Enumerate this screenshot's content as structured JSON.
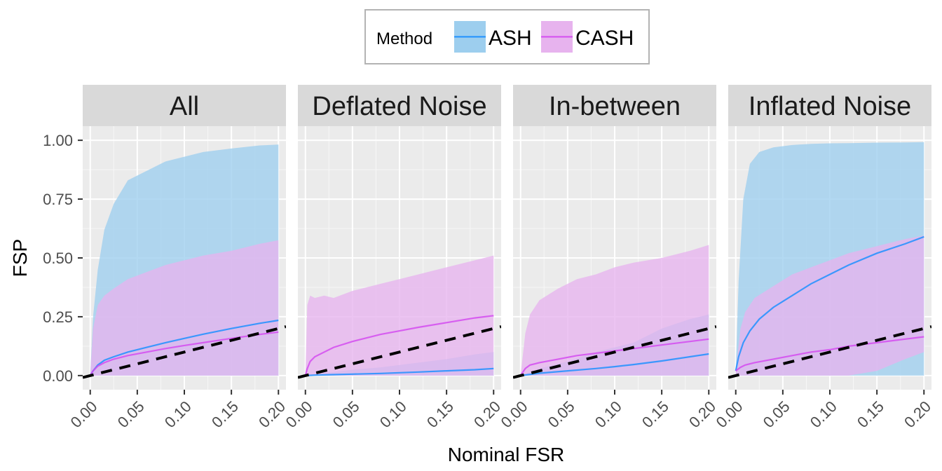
{
  "chart_data": {
    "type": "area",
    "xlabel": "Nominal FSR",
    "ylabel": "FSP",
    "xlim": [
      -0.008,
      0.208
    ],
    "ylim": [
      -0.06,
      1.06
    ],
    "x_ticks": [
      "0.00",
      "0.05",
      "0.10",
      "0.15",
      "0.20"
    ],
    "y_ticks": [
      "0.00",
      "0.25",
      "0.50",
      "0.75",
      "1.00"
    ],
    "grid": true,
    "legend": {
      "title": "Method",
      "position": "top",
      "entries": [
        {
          "label": "ASH",
          "line_color": "#1E90FF",
          "fill_color": "#9DCEEE"
        },
        {
          "label": "CASH",
          "line_color": "#D44CF0",
          "fill_color": "#E7B3EE"
        }
      ]
    },
    "reference_line": {
      "style": "dashed",
      "color": "#000000",
      "x": [
        -0.008,
        0.208
      ],
      "y": [
        -0.008,
        0.208
      ]
    },
    "panels": [
      {
        "title": "All",
        "series": [
          {
            "name": "ASH",
            "x": [
              0,
              0.003,
              0.008,
              0.015,
              0.025,
              0.04,
              0.06,
              0.08,
              0.1,
              0.12,
              0.15,
              0.18,
              0.2
            ],
            "y": [
              0,
              0.02,
              0.045,
              0.065,
              0.08,
              0.1,
              0.12,
              0.14,
              0.158,
              0.176,
              0.2,
              0.222,
              0.235
            ],
            "lower": [
              0,
              0,
              0,
              0,
              0,
              0,
              0,
              0,
              0,
              0,
              0,
              0,
              0
            ],
            "upper": [
              0,
              0.25,
              0.45,
              0.62,
              0.73,
              0.83,
              0.87,
              0.91,
              0.93,
              0.95,
              0.965,
              0.978,
              0.982
            ]
          },
          {
            "name": "CASH",
            "x": [
              0,
              0.003,
              0.008,
              0.015,
              0.025,
              0.04,
              0.06,
              0.08,
              0.1,
              0.12,
              0.15,
              0.18,
              0.2
            ],
            "y": [
              0,
              0.02,
              0.04,
              0.055,
              0.07,
              0.085,
              0.1,
              0.115,
              0.128,
              0.14,
              0.158,
              0.175,
              0.185
            ],
            "lower": [
              0,
              0,
              0,
              0,
              0,
              0,
              0,
              0,
              0,
              0,
              0,
              0,
              0
            ],
            "upper": [
              0,
              0.2,
              0.3,
              0.34,
              0.37,
              0.41,
              0.44,
              0.47,
              0.49,
              0.51,
              0.53,
              0.56,
              0.575
            ]
          }
        ]
      },
      {
        "title": "Deflated Noise",
        "series": [
          {
            "name": "ASH",
            "x": [
              0,
              0.01,
              0.03,
              0.05,
              0.08,
              0.1,
              0.12,
              0.15,
              0.18,
              0.2
            ],
            "y": [
              0,
              0.002,
              0.004,
              0.006,
              0.009,
              0.012,
              0.015,
              0.02,
              0.025,
              0.03
            ],
            "lower": [
              0,
              0,
              0,
              0,
              0,
              0,
              0,
              0,
              0,
              0
            ],
            "upper": [
              0,
              0.005,
              0.015,
              0.025,
              0.035,
              0.045,
              0.055,
              0.07,
              0.09,
              0.1
            ]
          },
          {
            "name": "CASH",
            "x": [
              0,
              0.002,
              0.005,
              0.01,
              0.02,
              0.03,
              0.05,
              0.08,
              0.1,
              0.12,
              0.15,
              0.18,
              0.2
            ],
            "y": [
              0,
              0.03,
              0.06,
              0.08,
              0.1,
              0.12,
              0.145,
              0.175,
              0.19,
              0.205,
              0.225,
              0.245,
              0.255
            ],
            "lower": [
              0,
              0,
              0,
              0,
              0,
              0,
              0,
              0,
              0,
              0,
              0,
              0,
              0
            ],
            "upper": [
              0,
              0.3,
              0.34,
              0.33,
              0.34,
              0.33,
              0.36,
              0.39,
              0.41,
              0.43,
              0.46,
              0.49,
              0.51
            ]
          }
        ]
      },
      {
        "title": "In-between",
        "series": [
          {
            "name": "ASH",
            "x": [
              0,
              0.02,
              0.05,
              0.08,
              0.1,
              0.12,
              0.15,
              0.18,
              0.2
            ],
            "y": [
              0,
              0.01,
              0.02,
              0.03,
              0.038,
              0.047,
              0.062,
              0.08,
              0.092
            ],
            "lower": [
              0,
              0,
              0,
              0,
              0,
              0,
              0,
              0,
              0
            ],
            "upper": [
              0,
              0.03,
              0.06,
              0.1,
              0.12,
              0.14,
              0.2,
              0.24,
              0.26
            ]
          },
          {
            "name": "CASH",
            "x": [
              0,
              0.005,
              0.01,
              0.02,
              0.04,
              0.06,
              0.08,
              0.1,
              0.12,
              0.15,
              0.18,
              0.2
            ],
            "y": [
              0,
              0.03,
              0.045,
              0.055,
              0.07,
              0.085,
              0.095,
              0.105,
              0.115,
              0.13,
              0.145,
              0.155
            ],
            "lower": [
              0,
              0,
              0,
              0,
              0,
              0,
              0,
              0,
              0,
              0,
              0,
              0
            ],
            "upper": [
              0,
              0.18,
              0.26,
              0.32,
              0.37,
              0.41,
              0.43,
              0.46,
              0.48,
              0.5,
              0.53,
              0.555
            ]
          }
        ]
      },
      {
        "title": "Inflated Noise",
        "series": [
          {
            "name": "ASH",
            "x": [
              0,
              0.003,
              0.008,
              0.015,
              0.025,
              0.04,
              0.06,
              0.08,
              0.1,
              0.12,
              0.15,
              0.18,
              0.2
            ],
            "y": [
              0.02,
              0.08,
              0.14,
              0.19,
              0.24,
              0.29,
              0.34,
              0.39,
              0.43,
              0.47,
              0.52,
              0.56,
              0.59
            ],
            "lower": [
              0,
              0,
              0,
              0,
              0,
              0,
              0,
              0,
              0,
              0,
              0,
              0,
              0
            ],
            "upper": [
              0.02,
              0.4,
              0.75,
              0.9,
              0.95,
              0.97,
              0.98,
              0.985,
              0.987,
              0.988,
              0.99,
              0.991,
              0.992
            ]
          },
          {
            "name": "CASH",
            "x": [
              0,
              0.005,
              0.01,
              0.02,
              0.04,
              0.06,
              0.08,
              0.1,
              0.12,
              0.15,
              0.18,
              0.2
            ],
            "y": [
              0.02,
              0.035,
              0.045,
              0.055,
              0.07,
              0.085,
              0.1,
              0.11,
              0.125,
              0.14,
              0.155,
              0.165
            ],
            "lower": [
              0,
              0,
              0,
              0,
              0,
              0,
              0,
              0,
              0,
              0.02,
              0.07,
              0.1
            ],
            "upper": [
              0.02,
              0.2,
              0.27,
              0.33,
              0.38,
              0.43,
              0.46,
              0.49,
              0.52,
              0.55,
              0.58,
              0.595
            ]
          }
        ]
      }
    ]
  }
}
